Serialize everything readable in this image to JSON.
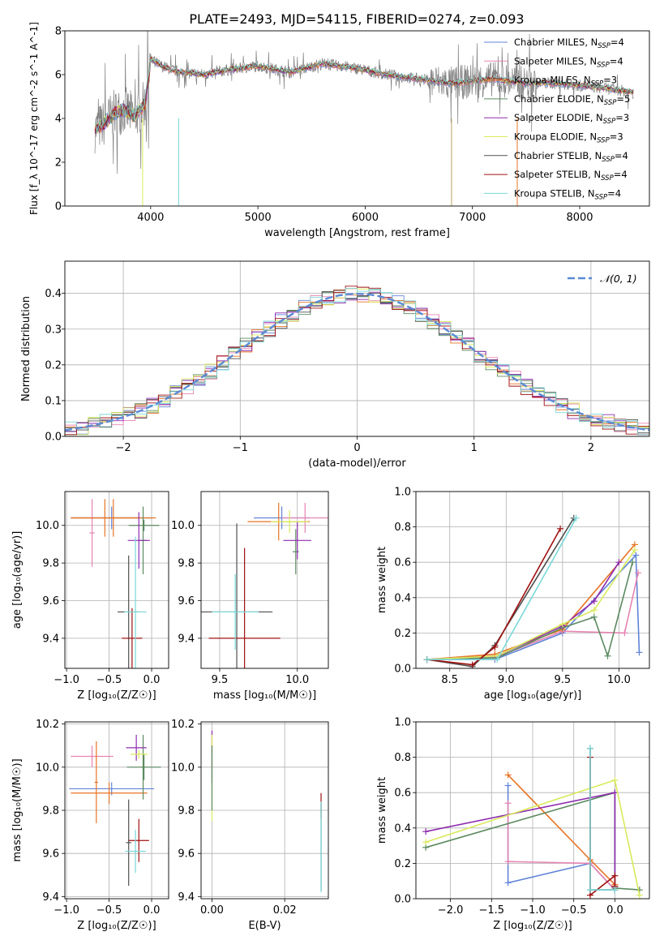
{
  "figure": {
    "title": "PLATE=2493, MJD=54115, FIBERID=0274, z=0.093"
  },
  "chart_data": [
    {
      "id": "spectrum",
      "type": "line",
      "title": "PLATE=2493, MJD=54115, FIBERID=0274, z=0.093",
      "xlabel": "wavelength [Angstrom, rest frame]",
      "ylabel": "Flux [f_λ 10^-17 erg cm^-2 s^-1 A^-1]",
      "xlim": [
        3200,
        8650
      ],
      "ylim": [
        0,
        8
      ],
      "xticks": [
        4000,
        5000,
        6000,
        7000,
        8000
      ],
      "yticks": [
        0,
        2,
        4,
        6,
        8
      ],
      "grid": false,
      "legend_position": "upper-right",
      "data": {
        "x": [
          3480,
          3550,
          3650,
          3750,
          3850,
          3950,
          4000,
          4100,
          4200,
          4300,
          4500,
          4700,
          5000,
          5300,
          5600,
          5900,
          6200,
          6500,
          6800,
          7000,
          7200,
          7500,
          7800,
          8000,
          8200,
          8500
        ],
        "y": [
          3.5,
          3.7,
          4.2,
          4.4,
          4.1,
          4.7,
          6.7,
          6.4,
          6.2,
          6.1,
          6.0,
          6.2,
          6.4,
          6.1,
          6.5,
          6.3,
          6.0,
          5.8,
          5.6,
          5.7,
          5.8,
          5.6,
          5.6,
          5.5,
          5.4,
          5.2
        ]
      },
      "series": [
        {
          "name": "Chabrier MILES, N_SSP=4",
          "color": "#6184d8"
        },
        {
          "name": "Salpeter MILES, N_SSP=4",
          "color": "#e683b2"
        },
        {
          "name": "Kroupa MILES, N_SSP=3",
          "color": "#e87323"
        },
        {
          "name": "Chabrier ELODIE, N_SSP=5",
          "color": "#5b8a5f"
        },
        {
          "name": "Salpeter ELODIE, N_SSP=3",
          "color": "#8e2bb0"
        },
        {
          "name": "Kroupa ELODIE, N_SSP=3",
          "color": "#d9ea5b"
        },
        {
          "name": "Chabrier STELIB, N_SSP=4",
          "color": "#505050"
        },
        {
          "name": "Salpeter STELIB, N_SSP=4",
          "color": "#a01010"
        },
        {
          "name": "Kroupa STELIB, N_SSP=4",
          "color": "#7ad8d8"
        }
      ],
      "legend": [
        {
          "base": "Chabrier MILES, N",
          "sub": "SSP",
          "suffix": "=4",
          "color": "#6184d8"
        },
        {
          "base": "Salpeter MILES, N",
          "sub": "SSP",
          "suffix": "=4",
          "color": "#e683b2"
        },
        {
          "base": "Kroupa MILES, N",
          "sub": "SSP",
          "suffix": "=3",
          "color": "#e87323"
        },
        {
          "base": "Chabrier ELODIE, N",
          "sub": "SSP",
          "suffix": "=5",
          "color": "#5b8a5f"
        },
        {
          "base": "Salpeter ELODIE, N",
          "sub": "SSP",
          "suffix": "=3",
          "color": "#8e2bb0"
        },
        {
          "base": "Kroupa ELODIE, N",
          "sub": "SSP",
          "suffix": "=3",
          "color": "#d9ea5b"
        },
        {
          "base": "Chabrier STELIB, N",
          "sub": "SSP",
          "suffix": "=4",
          "color": "#505050"
        },
        {
          "base": "Salpeter STELIB, N",
          "sub": "SSP",
          "suffix": "=4",
          "color": "#a01010"
        },
        {
          "base": "Kroupa STELIB, N",
          "sub": "SSP",
          "suffix": "=4",
          "color": "#7ad8d8"
        }
      ]
    },
    {
      "id": "residuals",
      "type": "histogram",
      "xlabel": "(data-model)/error",
      "ylabel": "Normed distribution",
      "xlim": [
        -2.5,
        2.5
      ],
      "ylim": [
        0,
        0.49
      ],
      "xticks": [
        -2,
        -1,
        0,
        1,
        2
      ],
      "yticks": [
        0.0,
        0.1,
        0.2,
        0.3,
        0.4
      ],
      "grid": true,
      "legend_position": "upper-right",
      "legend": "𝒩(0, 1)",
      "bin_width": 0.1,
      "bin_start": -2.5,
      "colors": [
        "#6184d8",
        "#e683b2",
        "#e87323",
        "#5b8a5f",
        "#8e2bb0",
        "#d9ea5b",
        "#505050",
        "#a01010",
        "#7ad8d8"
      ],
      "curve": {
        "name": "𝒩(0, 1)",
        "mean": 0,
        "sigma": 1,
        "color": "#5a8ad6"
      }
    },
    {
      "id": "z-age",
      "type": "errorbar",
      "xlabel": "Z [log₁₀(Z/Z☉)]",
      "ylabel": "age [log₁₀(age/yr)]",
      "xlim": [
        -1.02,
        0.2
      ],
      "ylim": [
        9.24,
        10.18
      ],
      "xticks": [
        -1.0,
        -0.5,
        0.0
      ],
      "yticks": [
        9.4,
        9.6,
        9.8,
        10.0
      ],
      "grid": true,
      "points": [
        {
          "x": -0.47,
          "y": 10.04,
          "xerr": 0.48,
          "yerr": 0.06,
          "color": "#6184d8"
        },
        {
          "x": -0.7,
          "y": 9.96,
          "xerr": 0.03,
          "yerr": 0.18,
          "color": "#e683b2"
        },
        {
          "x": -0.45,
          "y": 10.04,
          "xerr": 0.5,
          "yerr": 0.1,
          "color": "#e87323"
        },
        {
          "x": -0.55,
          "y": 10.04,
          "xerr": 0.4,
          "yerr": 0.1,
          "color": "#e87323"
        },
        {
          "x": -0.1,
          "y": 9.92,
          "xerr": 0.05,
          "yerr": 0.18,
          "color": "#5b8a5f"
        },
        {
          "x": -0.09,
          "y": 10.0,
          "xerr": 0.18,
          "yerr": 0.03,
          "color": "#5b8a5f"
        },
        {
          "x": -0.15,
          "y": 9.92,
          "xerr": 0.13,
          "yerr": 0.15,
          "color": "#8e2bb0"
        },
        {
          "x": -0.27,
          "y": 9.54,
          "xerr": 0.13,
          "yerr": 0.3,
          "color": "#505050"
        },
        {
          "x": -0.23,
          "y": 9.4,
          "xerr": 0.12,
          "yerr": 0.16,
          "color": "#a01010"
        },
        {
          "x": -0.19,
          "y": 9.54,
          "xerr": 0.13,
          "yerr": 0.4,
          "color": "#7ad8d8"
        }
      ]
    },
    {
      "id": "mass-age",
      "type": "errorbar",
      "xlabel": "mass [log₁₀(M/M☉)]",
      "ylabel": "",
      "xlim": [
        9.38,
        10.2
      ],
      "ylim": [
        9.24,
        10.18
      ],
      "xticks": [
        9.5,
        10.0
      ],
      "yticks": [
        9.4,
        9.6,
        9.8,
        10.0
      ],
      "grid": true,
      "points": [
        {
          "x": 9.9,
          "y": 10.04,
          "xerr": 0.18,
          "yerr": 0.06,
          "color": "#6184d8"
        },
        {
          "x": 10.05,
          "y": 10.04,
          "xerr": 0.15,
          "yerr": 0.08,
          "color": "#e683b2"
        },
        {
          "x": 9.88,
          "y": 10.02,
          "xerr": 0.2,
          "yerr": 0.1,
          "color": "#e87323"
        },
        {
          "x": 9.99,
          "y": 9.86,
          "xerr": 0.02,
          "yerr": 0.12,
          "color": "#5b8a5f"
        },
        {
          "x": 10.0,
          "y": 9.92,
          "xerr": 0.09,
          "yerr": 0.1,
          "color": "#8e2bb0"
        },
        {
          "x": 9.95,
          "y": 10.02,
          "xerr": 0.12,
          "yerr": 0.06,
          "color": "#d9ea5b"
        },
        {
          "x": 9.61,
          "y": 9.54,
          "xerr": 0.23,
          "yerr": 0.47,
          "color": "#505050"
        },
        {
          "x": 9.66,
          "y": 9.4,
          "xerr": 0.23,
          "yerr": 0.48,
          "color": "#a01010"
        },
        {
          "x": 9.6,
          "y": 9.54,
          "xerr": 0.15,
          "yerr": 0.2,
          "color": "#7ad8d8"
        }
      ]
    },
    {
      "id": "age-weight",
      "type": "line",
      "xlabel": "age [log₁₀(age/yr)]",
      "ylabel": "mass weight",
      "xlim": [
        8.2,
        10.27
      ],
      "ylim": [
        0,
        1
      ],
      "xticks": [
        8.5,
        9.0,
        9.5,
        10.0
      ],
      "yticks": [
        0.0,
        0.2,
        0.4,
        0.6,
        0.8,
        1.0
      ],
      "grid": true,
      "series": [
        {
          "color": "#6184d8",
          "x": [
            8.3,
            8.9,
            9.5,
            10.15,
            10.18
          ],
          "y": [
            0.05,
            0.05,
            0.2,
            0.64,
            0.09
          ]
        },
        {
          "color": "#e683b2",
          "x": [
            8.3,
            8.9,
            9.5,
            10.05,
            10.17
          ],
          "y": [
            0.05,
            0.06,
            0.21,
            0.2,
            0.54
          ]
        },
        {
          "color": "#e87323",
          "x": [
            8.3,
            8.9,
            9.5,
            10.14
          ],
          "y": [
            0.05,
            0.08,
            0.22,
            0.7
          ]
        },
        {
          "color": "#5b8a5f",
          "x": [
            8.3,
            8.92,
            9.5,
            9.78,
            9.9,
            10.12
          ],
          "y": [
            0.05,
            0.06,
            0.23,
            0.29,
            0.07,
            0.6
          ]
        },
        {
          "color": "#8e2bb0",
          "x": [
            8.3,
            8.92,
            9.5,
            9.78,
            10.0
          ],
          "y": [
            0.05,
            0.07,
            0.24,
            0.38,
            0.6
          ]
        },
        {
          "color": "#d9ea5b",
          "x": [
            8.3,
            8.92,
            9.5,
            9.78,
            10.14
          ],
          "y": [
            0.05,
            0.07,
            0.25,
            0.33,
            0.67
          ]
        },
        {
          "color": "#505050",
          "x": [
            8.3,
            8.7,
            8.9,
            9.6
          ],
          "y": [
            0.05,
            0.01,
            0.13,
            0.85
          ]
        },
        {
          "color": "#a01010",
          "x": [
            8.3,
            8.7,
            8.9,
            9.48
          ],
          "y": [
            0.05,
            0.02,
            0.12,
            0.79
          ]
        },
        {
          "color": "#7ad8d8",
          "x": [
            8.3,
            8.92,
            9.62
          ],
          "y": [
            0.05,
            0.05,
            0.85
          ]
        }
      ]
    },
    {
      "id": "z-mass",
      "type": "errorbar",
      "xlabel": "Z [log₁₀(Z/Z☉)]",
      "ylabel": "mass [log₁₀(M/M☉)]",
      "xlim": [
        -1.02,
        0.2
      ],
      "ylim": [
        9.39,
        10.21
      ],
      "xticks": [
        -1.0,
        -0.5,
        0.0
      ],
      "yticks": [
        9.4,
        9.6,
        9.8,
        10.0,
        10.2
      ],
      "grid": true,
      "points": [
        {
          "x": -0.47,
          "y": 9.9,
          "xerr": 0.5,
          "yerr": 0.03,
          "color": "#6184d8"
        },
        {
          "x": -0.7,
          "y": 10.05,
          "xerr": 0.25,
          "yerr": 0.05,
          "color": "#e683b2"
        },
        {
          "x": -0.5,
          "y": 9.88,
          "xerr": 0.45,
          "yerr": 0.05,
          "color": "#e87323"
        },
        {
          "x": -0.65,
          "y": 9.93,
          "xerr": 0.02,
          "yerr": 0.19,
          "color": "#e87323"
        },
        {
          "x": -0.09,
          "y": 10.0,
          "xerr": 0.2,
          "yerr": 0.06,
          "color": "#5b8a5f"
        },
        {
          "x": -0.1,
          "y": 10.0,
          "xerr": 0.02,
          "yerr": 0.15,
          "color": "#5b8a5f"
        },
        {
          "x": -0.18,
          "y": 10.09,
          "xerr": 0.12,
          "yerr": 0.06,
          "color": "#8e2bb0"
        },
        {
          "x": -0.15,
          "y": 10.06,
          "xerr": 0.1,
          "yerr": 0.02,
          "color": "#d9ea5b"
        },
        {
          "x": -0.27,
          "y": 9.65,
          "xerr": 0.03,
          "yerr": 0.2,
          "color": "#505050"
        },
        {
          "x": -0.15,
          "y": 9.66,
          "xerr": 0.12,
          "yerr": 0.1,
          "color": "#a01010"
        },
        {
          "x": -0.19,
          "y": 9.61,
          "xerr": 0.12,
          "yerr": 0.1,
          "color": "#7ad8d8"
        }
      ]
    },
    {
      "id": "ebv-mass",
      "type": "errorbar",
      "xlabel": "E(B-V)",
      "ylabel": "",
      "xlim": [
        -0.003,
        0.032
      ],
      "ylim": [
        9.39,
        10.21
      ],
      "xticks": [
        0.0,
        0.02
      ],
      "yticks": [
        9.4,
        9.6,
        9.8,
        10.0,
        10.2
      ],
      "grid": true,
      "points": [
        {
          "x": 0.0,
          "y": 10.05,
          "xerr": 0.0,
          "yerr": 0.1,
          "color": "#e683b2"
        },
        {
          "x": 0.0,
          "y": 10.05,
          "xerr": 0.0,
          "yerr": 0.12,
          "color": "#8e2bb0"
        },
        {
          "x": 0.0,
          "y": 9.95,
          "xerr": 0.0,
          "yerr": 0.2,
          "color": "#d9ea5b"
        },
        {
          "x": 0.0,
          "y": 9.95,
          "xerr": 0.0,
          "yerr": 0.15,
          "color": "#5b8a5f"
        },
        {
          "x": 0.03,
          "y": 9.82,
          "xerr": 0.0,
          "yerr": 0.06,
          "color": "#a01010"
        },
        {
          "x": 0.03,
          "y": 9.63,
          "xerr": 0.0,
          "yerr": 0.2,
          "color": "#505050"
        },
        {
          "x": 0.03,
          "y": 9.63,
          "xerr": 0.0,
          "yerr": 0.21,
          "color": "#7ad8d8"
        }
      ]
    },
    {
      "id": "z-weight",
      "type": "line",
      "xlabel": "Z [log₁₀(Z/Z☉)]",
      "ylabel": "mass weight",
      "xlim": [
        -2.42,
        0.42
      ],
      "ylim": [
        0,
        1
      ],
      "xticks": [
        -2.0,
        -1.5,
        -1.0,
        -0.5,
        0.0
      ],
      "yticks": [
        0.0,
        0.2,
        0.4,
        0.6,
        0.8,
        1.0
      ],
      "grid": true,
      "series": [
        {
          "color": "#6184d8",
          "x": [
            -1.3,
            -1.3,
            -0.3,
            0.0
          ],
          "y": [
            0.64,
            0.09,
            0.2,
            0.05
          ]
        },
        {
          "color": "#e683b2",
          "x": [
            -1.3,
            -1.3,
            -0.3,
            0.0
          ],
          "y": [
            0.54,
            0.21,
            0.2,
            0.05
          ]
        },
        {
          "color": "#e87323",
          "x": [
            -1.3,
            -0.3,
            0.0
          ],
          "y": [
            0.7,
            0.22,
            0.08
          ]
        },
        {
          "color": "#5b8a5f",
          "x": [
            -2.3,
            0.0,
            0.0,
            0.3
          ],
          "y": [
            0.29,
            0.6,
            0.06,
            0.05
          ]
        },
        {
          "color": "#8e2bb0",
          "x": [
            -2.3,
            0.0,
            0.0
          ],
          "y": [
            0.38,
            0.6,
            0.07
          ]
        },
        {
          "color": "#d9ea5b",
          "x": [
            -2.3,
            0.0,
            0.3
          ],
          "y": [
            0.32,
            0.67,
            0.02
          ]
        },
        {
          "color": "#505050",
          "x": [
            -0.3,
            -0.3,
            0.0
          ],
          "y": [
            0.85,
            0.05,
            0.05
          ]
        },
        {
          "color": "#a01010",
          "x": [
            -0.3,
            -0.3,
            0.0,
            0.0
          ],
          "y": [
            0.8,
            0.02,
            0.13,
            0.07
          ]
        },
        {
          "color": "#7ad8d8",
          "x": [
            -0.3,
            -0.3,
            0.0
          ],
          "y": [
            0.85,
            0.05,
            0.05
          ]
        }
      ]
    }
  ]
}
